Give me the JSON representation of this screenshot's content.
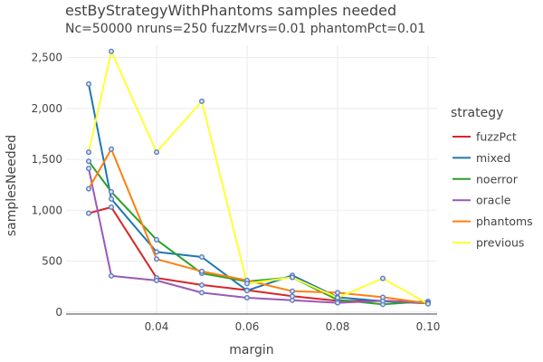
{
  "chart_data": {
    "type": "line",
    "title": "estByStrategyWithPhantoms samples needed",
    "subtitle": "Nc=50000 nruns=250 fuzzMvrs=0.01 phantomPct=0.01",
    "xlabel": "margin",
    "ylabel": "samplesNeeded",
    "xlim": [
      0.02,
      0.102
    ],
    "ylim": [
      -20,
      2620
    ],
    "xticks": [
      0.04,
      0.06,
      0.08,
      0.1
    ],
    "xtick_labels": [
      "0.04",
      "0.06",
      "0.08",
      "0.10"
    ],
    "yticks": [
      0,
      500,
      1000,
      1500,
      2000,
      2500
    ],
    "ytick_labels": [
      "0",
      "500",
      "1,000",
      "1,500",
      "2,000",
      "2,500"
    ],
    "grid": true,
    "legend_title": "strategy",
    "legend_position": "right",
    "x": [
      0.025,
      0.03,
      0.04,
      0.05,
      0.06,
      0.07,
      0.08,
      0.09,
      0.1
    ],
    "series": [
      {
        "name": "fuzzPct",
        "color": "#d62728",
        "values": [
          970,
          1030,
          335,
          265,
          215,
          155,
          110,
          110,
          95
        ]
      },
      {
        "name": "mixed",
        "color": "#1f77b4",
        "values": [
          2240,
          1110,
          590,
          540,
          210,
          360,
          145,
          105,
          85
        ]
      },
      {
        "name": "noerror",
        "color": "#2ca02c",
        "values": [
          1480,
          1180,
          710,
          380,
          300,
          340,
          120,
          75,
          105
        ]
      },
      {
        "name": "oracle",
        "color": "#9b59b6",
        "values": [
          1410,
          355,
          310,
          190,
          140,
          115,
          90,
          110,
          90
        ]
      },
      {
        "name": "phantoms",
        "color": "#ff7f0e",
        "values": [
          1210,
          1600,
          520,
          400,
          310,
          205,
          190,
          145,
          85
        ]
      },
      {
        "name": "previous",
        "color": "#ffff33",
        "values": [
          1570,
          2560,
          1570,
          2070,
          280,
          340,
          140,
          330,
          80
        ]
      }
    ],
    "marker_color": "#5b7bbf"
  }
}
